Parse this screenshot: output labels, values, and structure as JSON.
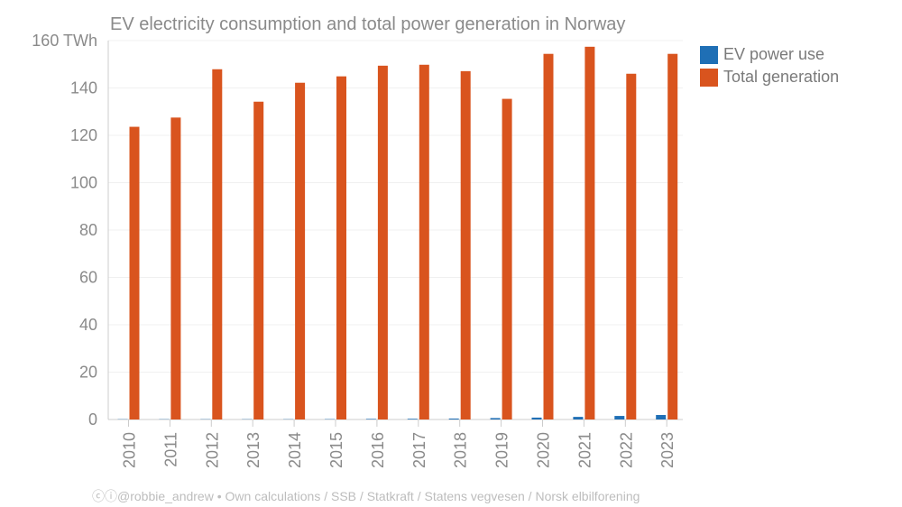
{
  "chart_data": {
    "type": "bar",
    "title": "EV electricity consumption and total power generation in Norway",
    "ylabel_unit": "TWh",
    "categories": [
      "2010",
      "2011",
      "2012",
      "2013",
      "2014",
      "2015",
      "2016",
      "2017",
      "2018",
      "2019",
      "2020",
      "2021",
      "2022",
      "2023"
    ],
    "series": [
      {
        "name": "EV power use",
        "color": "#1f6fb5",
        "values": [
          0.02,
          0.03,
          0.05,
          0.05,
          0.1,
          0.15,
          0.25,
          0.3,
          0.4,
          0.6,
          0.8,
          1.1,
          1.5,
          1.9
        ]
      },
      {
        "name": "Total generation",
        "color": "#d9541e",
        "values": [
          123.6,
          127.5,
          147.9,
          134.2,
          142.2,
          144.9,
          149.4,
          149.8,
          147.1,
          135.4,
          154.4,
          157.4,
          146.0,
          154.4
        ]
      }
    ],
    "ylim": [
      0,
      160
    ],
    "yticks": [
      0,
      20,
      40,
      60,
      80,
      100,
      120,
      140,
      160
    ],
    "ytick_labels": [
      "0",
      "20",
      "40",
      "60",
      "80",
      "100",
      "120",
      "140",
      "160 TWh"
    ],
    "grid": true,
    "legend_position": "top-right"
  },
  "source": "@robbie_andrew  •  Own calculations / SSB / Statkraft / Statens vegvesen / Norsk elbilforening"
}
